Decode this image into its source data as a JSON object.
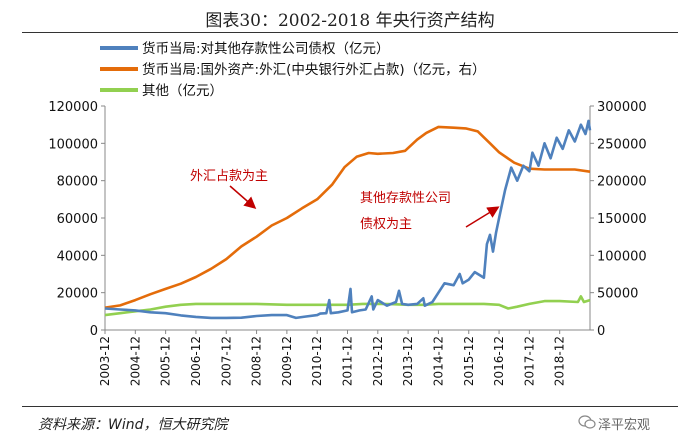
{
  "header": {
    "title": "图表30：2002-2018 年央行资产结构"
  },
  "footer": {
    "source": "资料来源：Wind，恒大研究院",
    "brand": "泽平宏观"
  },
  "chart_data": {
    "type": "line",
    "title": "图表30：2002-2018 年央行资产结构",
    "xlabel": "",
    "ylabel": "",
    "x": [
      "2003-12",
      "2004-12",
      "2005-12",
      "2006-12",
      "2007-12",
      "2008-12",
      "2009-12",
      "2010-12",
      "2011-12",
      "2012-12",
      "2013-12",
      "2014-12",
      "2015-12",
      "2016-12",
      "2017-12",
      "2018-12"
    ],
    "left_axis": {
      "ylim": [
        0,
        120000
      ],
      "ticks": [
        "0",
        "20000",
        "40000",
        "60000",
        "80000",
        "100000",
        "120000"
      ]
    },
    "right_axis": {
      "ylim": [
        0,
        300000
      ],
      "ticks": [
        "0",
        "50000",
        "100000",
        "150000",
        "200000",
        "250000",
        "300000"
      ]
    },
    "series": [
      {
        "name": "货币当局:对其他存款性公司债权（亿元）",
        "axis": "left",
        "color": "#4f81bd",
        "points": [
          [
            2003.0,
            11500
          ],
          [
            2003.5,
            11000
          ],
          [
            2004.0,
            10500
          ],
          [
            2004.5,
            9500
          ],
          [
            2005.0,
            9000
          ],
          [
            2005.5,
            7800
          ],
          [
            2006.0,
            7000
          ],
          [
            2006.5,
            6500
          ],
          [
            2007.0,
            6500
          ],
          [
            2007.5,
            6600
          ],
          [
            2008.0,
            7500
          ],
          [
            2008.5,
            8000
          ],
          [
            2009.0,
            8000
          ],
          [
            2009.3,
            6500
          ],
          [
            2009.6,
            7200
          ],
          [
            2010.0,
            8000
          ],
          [
            2010.1,
            8800
          ],
          [
            2010.3,
            9000
          ],
          [
            2010.4,
            16000
          ],
          [
            2010.45,
            9000
          ],
          [
            2010.7,
            9500
          ],
          [
            2011.0,
            10500
          ],
          [
            2011.1,
            22000
          ],
          [
            2011.15,
            9500
          ],
          [
            2011.4,
            10500
          ],
          [
            2011.6,
            11000
          ],
          [
            2011.8,
            18000
          ],
          [
            2011.85,
            11000
          ],
          [
            2012.0,
            16000
          ],
          [
            2012.3,
            13000
          ],
          [
            2012.6,
            15000
          ],
          [
            2012.7,
            21000
          ],
          [
            2012.8,
            14000
          ],
          [
            2013.0,
            13500
          ],
          [
            2013.3,
            14000
          ],
          [
            2013.5,
            17000
          ],
          [
            2013.55,
            13000
          ],
          [
            2013.8,
            15000
          ],
          [
            2014.0,
            20000
          ],
          [
            2014.2,
            25000
          ],
          [
            2014.5,
            24000
          ],
          [
            2014.7,
            30000
          ],
          [
            2014.8,
            25000
          ],
          [
            2015.0,
            27000
          ],
          [
            2015.2,
            31000
          ],
          [
            2015.4,
            29000
          ],
          [
            2015.5,
            28000
          ],
          [
            2015.6,
            46000
          ],
          [
            2015.7,
            51000
          ],
          [
            2015.8,
            42000
          ],
          [
            2015.9,
            52000
          ],
          [
            2016.0,
            60000
          ],
          [
            2016.2,
            75000
          ],
          [
            2016.4,
            87000
          ],
          [
            2016.6,
            80000
          ],
          [
            2016.8,
            88000
          ],
          [
            2017.0,
            85000
          ],
          [
            2017.1,
            95000
          ],
          [
            2017.3,
            88000
          ],
          [
            2017.5,
            100000
          ],
          [
            2017.7,
            92000
          ],
          [
            2017.9,
            103000
          ],
          [
            2018.1,
            97000
          ],
          [
            2018.3,
            107000
          ],
          [
            2018.5,
            101000
          ],
          [
            2018.7,
            110000
          ],
          [
            2018.85,
            105000
          ],
          [
            2018.95,
            112000
          ],
          [
            2019.0,
            107000
          ]
        ]
      },
      {
        "name": "货币当局:国外资产:外汇(中央银行外汇占款)（亿元，右）",
        "axis": "right",
        "color": "#e46c0a",
        "points": [
          [
            2003.0,
            30000
          ],
          [
            2003.5,
            33000
          ],
          [
            2004.0,
            40000
          ],
          [
            2004.5,
            48000
          ],
          [
            2005.0,
            55000
          ],
          [
            2005.5,
            62000
          ],
          [
            2006.0,
            71000
          ],
          [
            2006.5,
            82000
          ],
          [
            2007.0,
            95000
          ],
          [
            2007.5,
            112000
          ],
          [
            2008.0,
            125000
          ],
          [
            2008.5,
            140000
          ],
          [
            2009.0,
            150000
          ],
          [
            2009.5,
            163000
          ],
          [
            2010.0,
            175000
          ],
          [
            2010.5,
            195000
          ],
          [
            2010.9,
            218000
          ],
          [
            2011.3,
            232000
          ],
          [
            2011.7,
            237000
          ],
          [
            2012.0,
            236000
          ],
          [
            2012.5,
            237000
          ],
          [
            2012.9,
            240000
          ],
          [
            2013.3,
            255000
          ],
          [
            2013.6,
            264000
          ],
          [
            2014.0,
            272000
          ],
          [
            2014.5,
            271000
          ],
          [
            2014.9,
            270000
          ],
          [
            2015.3,
            266000
          ],
          [
            2015.7,
            250000
          ],
          [
            2016.0,
            238000
          ],
          [
            2016.5,
            224000
          ],
          [
            2017.0,
            216000
          ],
          [
            2017.5,
            215000
          ],
          [
            2018.0,
            215000
          ],
          [
            2018.5,
            215000
          ],
          [
            2019.0,
            212000
          ]
        ]
      },
      {
        "name": "其他（亿元）",
        "axis": "left",
        "color": "#92d050",
        "points": [
          [
            2003.0,
            8000
          ],
          [
            2003.5,
            9000
          ],
          [
            2004.0,
            10000
          ],
          [
            2004.5,
            11000
          ],
          [
            2005.0,
            12500
          ],
          [
            2005.5,
            13500
          ],
          [
            2006.0,
            14000
          ],
          [
            2007.0,
            14000
          ],
          [
            2008.0,
            14000
          ],
          [
            2009.0,
            13500
          ],
          [
            2010.0,
            13500
          ],
          [
            2011.0,
            13500
          ],
          [
            2011.5,
            14000
          ],
          [
            2012.0,
            14000
          ],
          [
            2012.5,
            13800
          ],
          [
            2013.0,
            13500
          ],
          [
            2013.5,
            13500
          ],
          [
            2014.0,
            14000
          ],
          [
            2014.5,
            14000
          ],
          [
            2015.0,
            14000
          ],
          [
            2015.5,
            14000
          ],
          [
            2016.0,
            13500
          ],
          [
            2016.3,
            11500
          ],
          [
            2016.6,
            12500
          ],
          [
            2017.0,
            14000
          ],
          [
            2017.5,
            15500
          ],
          [
            2018.0,
            15500
          ],
          [
            2018.6,
            15000
          ],
          [
            2018.7,
            18000
          ],
          [
            2018.8,
            15000
          ],
          [
            2019.0,
            16000
          ]
        ]
      }
    ],
    "annotations": [
      {
        "text": "外汇占款为主",
        "color": "#c00000"
      },
      {
        "text": "其他存款性公司",
        "color": "#c00000"
      },
      {
        "text": "债权为主",
        "color": "#c00000"
      }
    ]
  }
}
